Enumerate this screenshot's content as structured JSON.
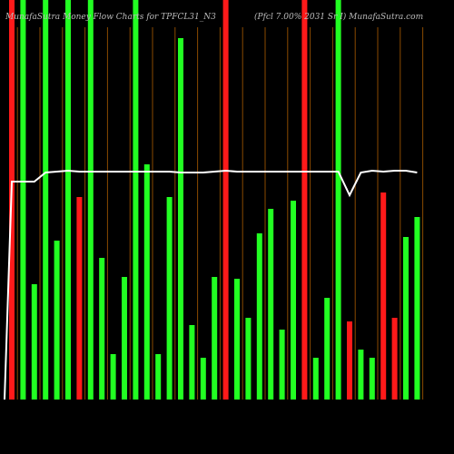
{
  "chart_data": {
    "type": "bar",
    "title": "MunafaSutra  Money Flow  Charts for TPFCL31_N3",
    "subtitle": "(Pfcl 7.00% 2031 Sr I) MunafaSutra.com",
    "values": [
      440,
      440,
      127,
      440,
      175,
      440,
      223,
      440,
      156,
      50,
      135,
      440,
      259,
      50,
      223,
      398,
      82,
      46,
      135,
      440,
      133,
      90,
      183,
      210,
      77,
      219,
      440,
      46,
      112,
      440,
      86,
      55,
      46,
      228,
      90,
      179,
      201
    ],
    "colors": [
      "#ff1a1a",
      "#22ff22",
      "#22ff22",
      "#22ff22",
      "#22ff22",
      "#22ff22",
      "#ff1a1a",
      "#22ff22",
      "#22ff22",
      "#22ff22",
      "#22ff22",
      "#22ff22",
      "#22ff22",
      "#22ff22",
      "#22ff22",
      "#22ff22",
      "#22ff22",
      "#22ff22",
      "#22ff22",
      "#ff1a1a",
      "#22ff22",
      "#22ff22",
      "#22ff22",
      "#22ff22",
      "#22ff22",
      "#22ff22",
      "#ff1a1a",
      "#22ff22",
      "#22ff22",
      "#22ff22",
      "#ff1a1a",
      "#22ff22",
      "#22ff22",
      "#ff1a1a",
      "#ff1a1a",
      "#22ff22",
      "#22ff22"
    ],
    "line": {
      "color": "#ffffff",
      "values": [
        240,
        240,
        240,
        250,
        251,
        252,
        251,
        251,
        251,
        251,
        251,
        251,
        251,
        251,
        251,
        250,
        250,
        250,
        251,
        252,
        251,
        251,
        251,
        251,
        251,
        251,
        251,
        251,
        251,
        251,
        225,
        250,
        252,
        251,
        252,
        252,
        250
      ]
    }
  }
}
